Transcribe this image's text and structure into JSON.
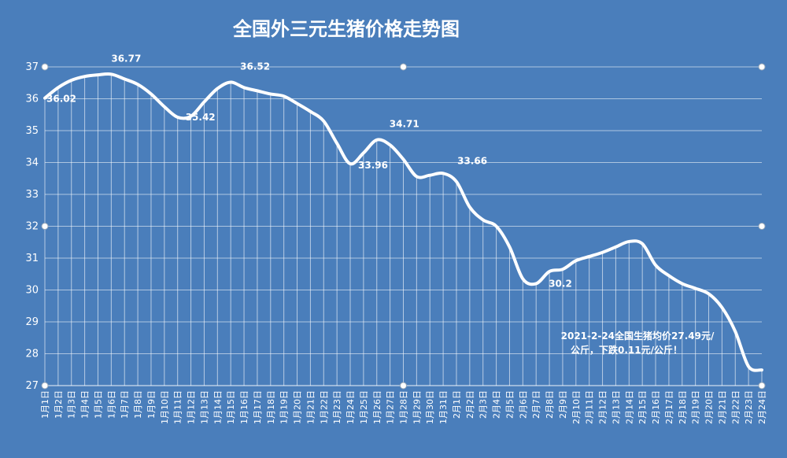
{
  "chart_data": {
    "type": "line",
    "title": "全国外三元生猪价格走势图",
    "xlabel": "",
    "ylabel": "",
    "ylim": [
      27,
      37
    ],
    "yticks": [
      27,
      28,
      29,
      30,
      31,
      32,
      33,
      34,
      35,
      36,
      37
    ],
    "grid": true,
    "categories": [
      "1月1日",
      "1月2日",
      "1月3日",
      "1月4日",
      "1月5日",
      "1月6日",
      "1月7日",
      "1月8日",
      "1月9日",
      "1月10日",
      "1月11日",
      "1月12日",
      "1月13日",
      "1月14日",
      "1月15日",
      "1月16日",
      "1月17日",
      "1月18日",
      "1月19日",
      "1月20日",
      "1月21日",
      "1月22日",
      "1月23日",
      "1月24日",
      "1月25日",
      "1月26日",
      "1月27日",
      "1月28日",
      "1月29日",
      "1月30日",
      "1月31日",
      "2月1日",
      "2月2日",
      "2月3日",
      "2月4日",
      "2月5日",
      "2月6日",
      "2月7日",
      "2月8日",
      "2月9日",
      "2月10日",
      "2月11日",
      "2月12日",
      "2月13日",
      "2月14日",
      "2月15日",
      "2月16日",
      "2月17日",
      "2月18日",
      "2月19日",
      "2月20日",
      "2月21日",
      "2月22日",
      "2月23日",
      "2月24日"
    ],
    "values": [
      36.02,
      36.35,
      36.58,
      36.7,
      36.75,
      36.77,
      36.62,
      36.45,
      36.15,
      35.75,
      35.42,
      35.45,
      35.9,
      36.32,
      36.52,
      36.35,
      36.25,
      36.15,
      36.08,
      35.85,
      35.6,
      35.3,
      34.6,
      33.96,
      34.3,
      34.71,
      34.55,
      34.1,
      33.56,
      33.6,
      33.66,
      33.4,
      32.6,
      32.2,
      32.0,
      31.35,
      30.35,
      30.2,
      30.58,
      30.65,
      30.92,
      31.05,
      31.18,
      31.35,
      31.52,
      31.45,
      30.78,
      30.45,
      30.2,
      30.05,
      29.88,
      29.45,
      28.7,
      27.6,
      27.49
    ],
    "data_labels": [
      {
        "index": 0,
        "text": "36.02"
      },
      {
        "index": 5,
        "text": "36.77"
      },
      {
        "index": 10,
        "text": "35.42"
      },
      {
        "index": 14,
        "text": "36.52"
      },
      {
        "index": 23,
        "text": "33.96"
      },
      {
        "index": 25,
        "text": "34.71"
      },
      {
        "index": 30,
        "text": "33.66"
      },
      {
        "index": 37,
        "text": "30.2"
      }
    ],
    "annotation": {
      "line1": "2021-2-24全国生猪均价27.49元/",
      "line2": "公斤，下跌0.11元/公斤！"
    },
    "colors": {
      "background": "#4a7ebb",
      "line": "#ffffff",
      "grid": "#ffffff"
    }
  }
}
